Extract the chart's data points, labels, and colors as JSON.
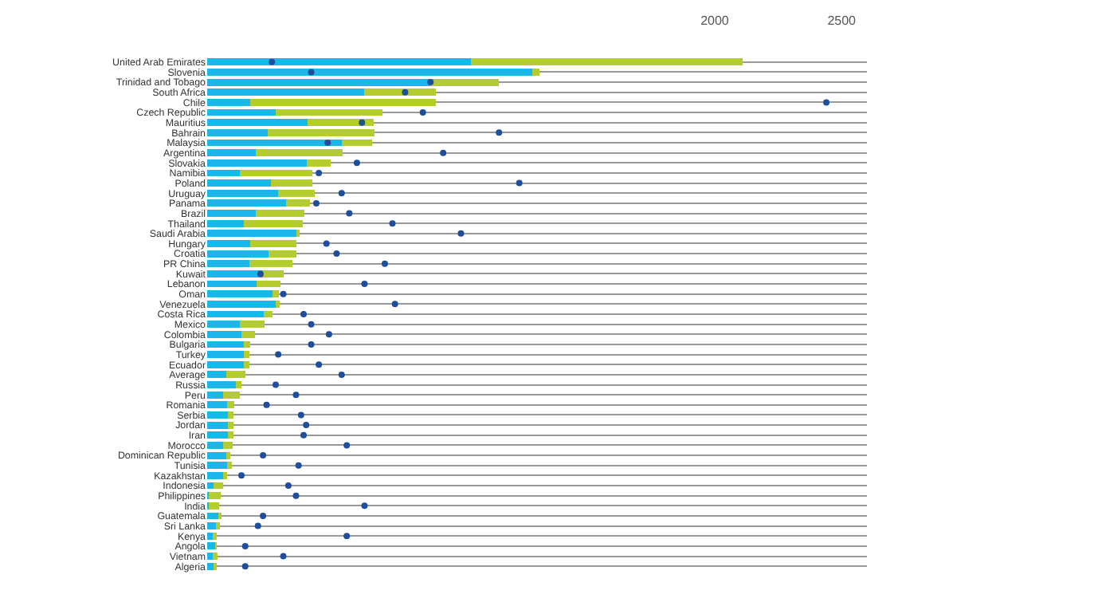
{
  "chart_data": {
    "type": "bar",
    "orientation": "horizontal",
    "stacked": true,
    "categories": [
      "United Arab Emirates",
      "Slovenia",
      "Trinidad and Tobago",
      "South Africa",
      "Chile",
      "Czech Republic",
      "Mauritius",
      "Bahrain",
      "Malaysia",
      "Argentina",
      "Slovakia",
      "Namibia",
      "Poland",
      "Uruguay",
      "Panama",
      "Brazil",
      "Thailand",
      "Saudi Arabia",
      "Hungary",
      "Croatia",
      "PR China",
      "Kuwait",
      "Lebanon",
      "Oman",
      "Venezuela",
      "Costa Rica",
      "Mexico",
      "Colombia",
      "Bulgaria",
      "Turkey",
      "Ecuador",
      "Average",
      "Russia",
      "Peru",
      "Romania",
      "Serbia",
      "Jordan",
      "Iran",
      "Morocco",
      "Dominican Republic",
      "Tunisia",
      "Kazakhstan",
      "Indonesia",
      "Philippines",
      "India",
      "Guatemala",
      "Sri Lanka",
      "Kenya",
      "Angola",
      "Vietnam",
      "Algeria"
    ],
    "series": [
      {
        "color": "#1ab7ea",
        "values": [
          1040,
          1280,
          880,
          620,
          170,
          270,
          395,
          240,
          530,
          190,
          394,
          130,
          250,
          278,
          310,
          192,
          144,
          352,
          170,
          243,
          166,
          220,
          195,
          256,
          275,
          224,
          128,
          134,
          144,
          144,
          144,
          74,
          112,
          64,
          80,
          83,
          83,
          83,
          64,
          74,
          80,
          64,
          26,
          6,
          6,
          45,
          35,
          22,
          32,
          22,
          26
        ]
      },
      {
        "color": "#b5cc2e",
        "values": [
          1070,
          30,
          270,
          280,
          730,
          420,
          260,
          420,
          120,
          345,
          93,
          285,
          166,
          147,
          96,
          192,
          234,
          10,
          182,
          109,
          170,
          80,
          93,
          26,
          10,
          32,
          99,
          54,
          26,
          22,
          22,
          77,
          22,
          64,
          26,
          22,
          22,
          22,
          38,
          16,
          16,
          13,
          38,
          48,
          42,
          10,
          16,
          16,
          3,
          19,
          10
        ]
      },
      {
        "type": "scatter",
        "color": "#1f4e9c",
        "values": [
          255,
          410,
          880,
          780,
          2440,
          850,
          610,
          1150,
          475,
          930,
          590,
          440,
          1230,
          530,
          430,
          560,
          730,
          1000,
          470,
          510,
          700,
          210,
          620,
          300,
          740,
          380,
          410,
          480,
          410,
          280,
          440,
          530,
          270,
          350,
          234,
          370,
          390,
          380,
          550,
          220,
          360,
          135,
          320,
          350,
          620,
          220,
          200,
          550,
          150,
          300,
          150
        ]
      }
    ],
    "xlim": [
      0,
      2600
    ],
    "xticks": [
      2000,
      2500
    ],
    "grid": "y",
    "marker": "circle"
  }
}
